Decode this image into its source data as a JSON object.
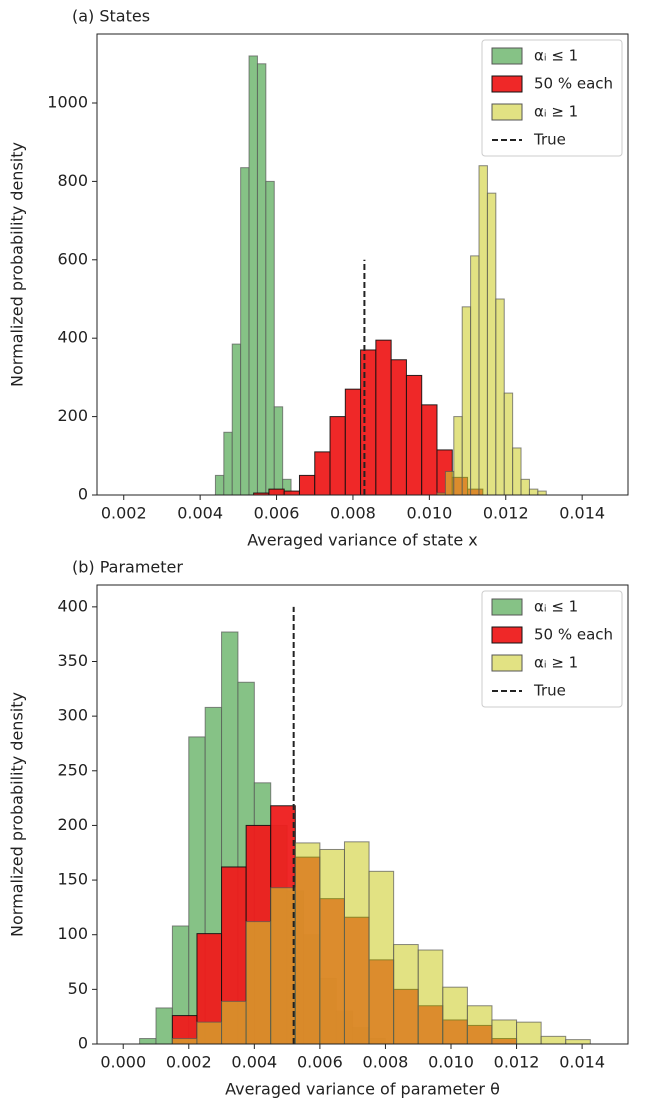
{
  "chart_data": [
    {
      "type": "histogram",
      "title": "(a) States",
      "x_label": "Averaged variance of state x",
      "y_label": "Normalized probability density",
      "xlim": [
        0.0013,
        0.0152
      ],
      "ylim": [
        0,
        1176
      ],
      "xticks": [
        0.002,
        0.004,
        0.006,
        0.008,
        {
          "value": 0.01,
          "label": "0.010"
        },
        0.012,
        0.014
      ],
      "yticks": [
        0,
        200,
        400,
        600,
        800,
        1000
      ],
      "legend": "upper right",
      "series": [
        {
          "name": "αᵢ ≤ 1",
          "color": "#7fbf7f",
          "bins": [
            0.0044,
            0.00462,
            0.00484,
            0.00506,
            0.00528,
            0.0055,
            0.00572,
            0.00594,
            0.00616,
            0.00638
          ],
          "values": [
            50,
            160,
            385,
            835,
            1120,
            1100,
            800,
            225,
            40
          ]
        },
        {
          "name": "50 % each",
          "color": "#ee1c1c",
          "bins": [
            0.0054,
            0.0058,
            0.0062,
            0.0066,
            0.007,
            0.0074,
            0.0078,
            0.0082,
            0.0086,
            0.009,
            0.0094,
            0.0098,
            0.0102,
            0.0106,
            0.011,
            0.0114
          ],
          "values": [
            5,
            15,
            10,
            50,
            110,
            200,
            270,
            370,
            395,
            345,
            305,
            230,
            115,
            45,
            15
          ]
        },
        {
          "name": "αᵢ ≥ 1",
          "color": "#cfcf30",
          "bins": [
            0.0102,
            0.01042,
            0.01064,
            0.01086,
            0.01108,
            0.0113,
            0.01152,
            0.01174,
            0.01196,
            0.01218,
            0.0124,
            0.01262,
            0.01284,
            0.01306
          ],
          "values": [
            5,
            60,
            200,
            480,
            610,
            840,
            770,
            500,
            260,
            120,
            40,
            15,
            10
          ]
        }
      ],
      "reference_line": {
        "name": "True",
        "x": 0.0083,
        "height": 600
      }
    },
    {
      "type": "histogram",
      "title": "(b) Parameter",
      "x_label": "Averaged variance of parameter θ",
      "y_label": "Normalized probability density",
      "xlim": [
        -0.0008,
        0.0154
      ],
      "ylim": [
        0,
        420
      ],
      "xticks": [
        {
          "value": 0,
          "label": "0.000"
        },
        0.002,
        0.004,
        0.006,
        0.008,
        {
          "value": 0.01,
          "label": "0.010"
        },
        0.012,
        0.014
      ],
      "yticks": [
        0,
        50,
        100,
        150,
        200,
        250,
        300,
        350,
        400
      ],
      "legend": "upper right",
      "series": [
        {
          "name": "αᵢ ≤ 1",
          "color": "#7fbf7f",
          "bins": [
            0.0005,
            0.001,
            0.0015,
            0.002,
            0.0025,
            0.003,
            0.0035,
            0.004,
            0.0045,
            0.005,
            0.0055,
            0.006,
            0.0065,
            0.007,
            0.0075,
            0.008
          ],
          "values": [
            5,
            33,
            108,
            281,
            308,
            377,
            331,
            239,
            200,
            140,
            100,
            60,
            30,
            15,
            5
          ]
        },
        {
          "name": "50 % each",
          "color": "#ee1c1c",
          "bins": [
            0.0015,
            0.00225,
            0.003,
            0.00375,
            0.0045,
            0.00525,
            0.006,
            0.00675,
            0.0075,
            0.00825,
            0.009,
            0.00975,
            0.0105,
            0.01125,
            0.012
          ],
          "values": [
            26,
            101,
            162,
            200,
            218,
            171,
            133,
            116,
            77,
            50,
            35,
            22,
            17,
            5
          ]
        },
        {
          "name": "αᵢ ≥ 1",
          "color": "#cfcf30",
          "bins": [
            0.0015,
            0.00225,
            0.003,
            0.00375,
            0.0045,
            0.00525,
            0.006,
            0.00675,
            0.0075,
            0.00825,
            0.009,
            0.00975,
            0.0105,
            0.01125,
            0.012,
            0.01275,
            0.0135,
            0.01425
          ],
          "values": [
            5,
            20,
            39,
            112,
            143,
            184,
            178,
            185,
            158,
            91,
            86,
            52,
            35,
            22,
            20,
            7,
            4
          ]
        }
      ],
      "reference_line": {
        "name": "True",
        "x": 0.0052,
        "height": 400
      }
    }
  ]
}
